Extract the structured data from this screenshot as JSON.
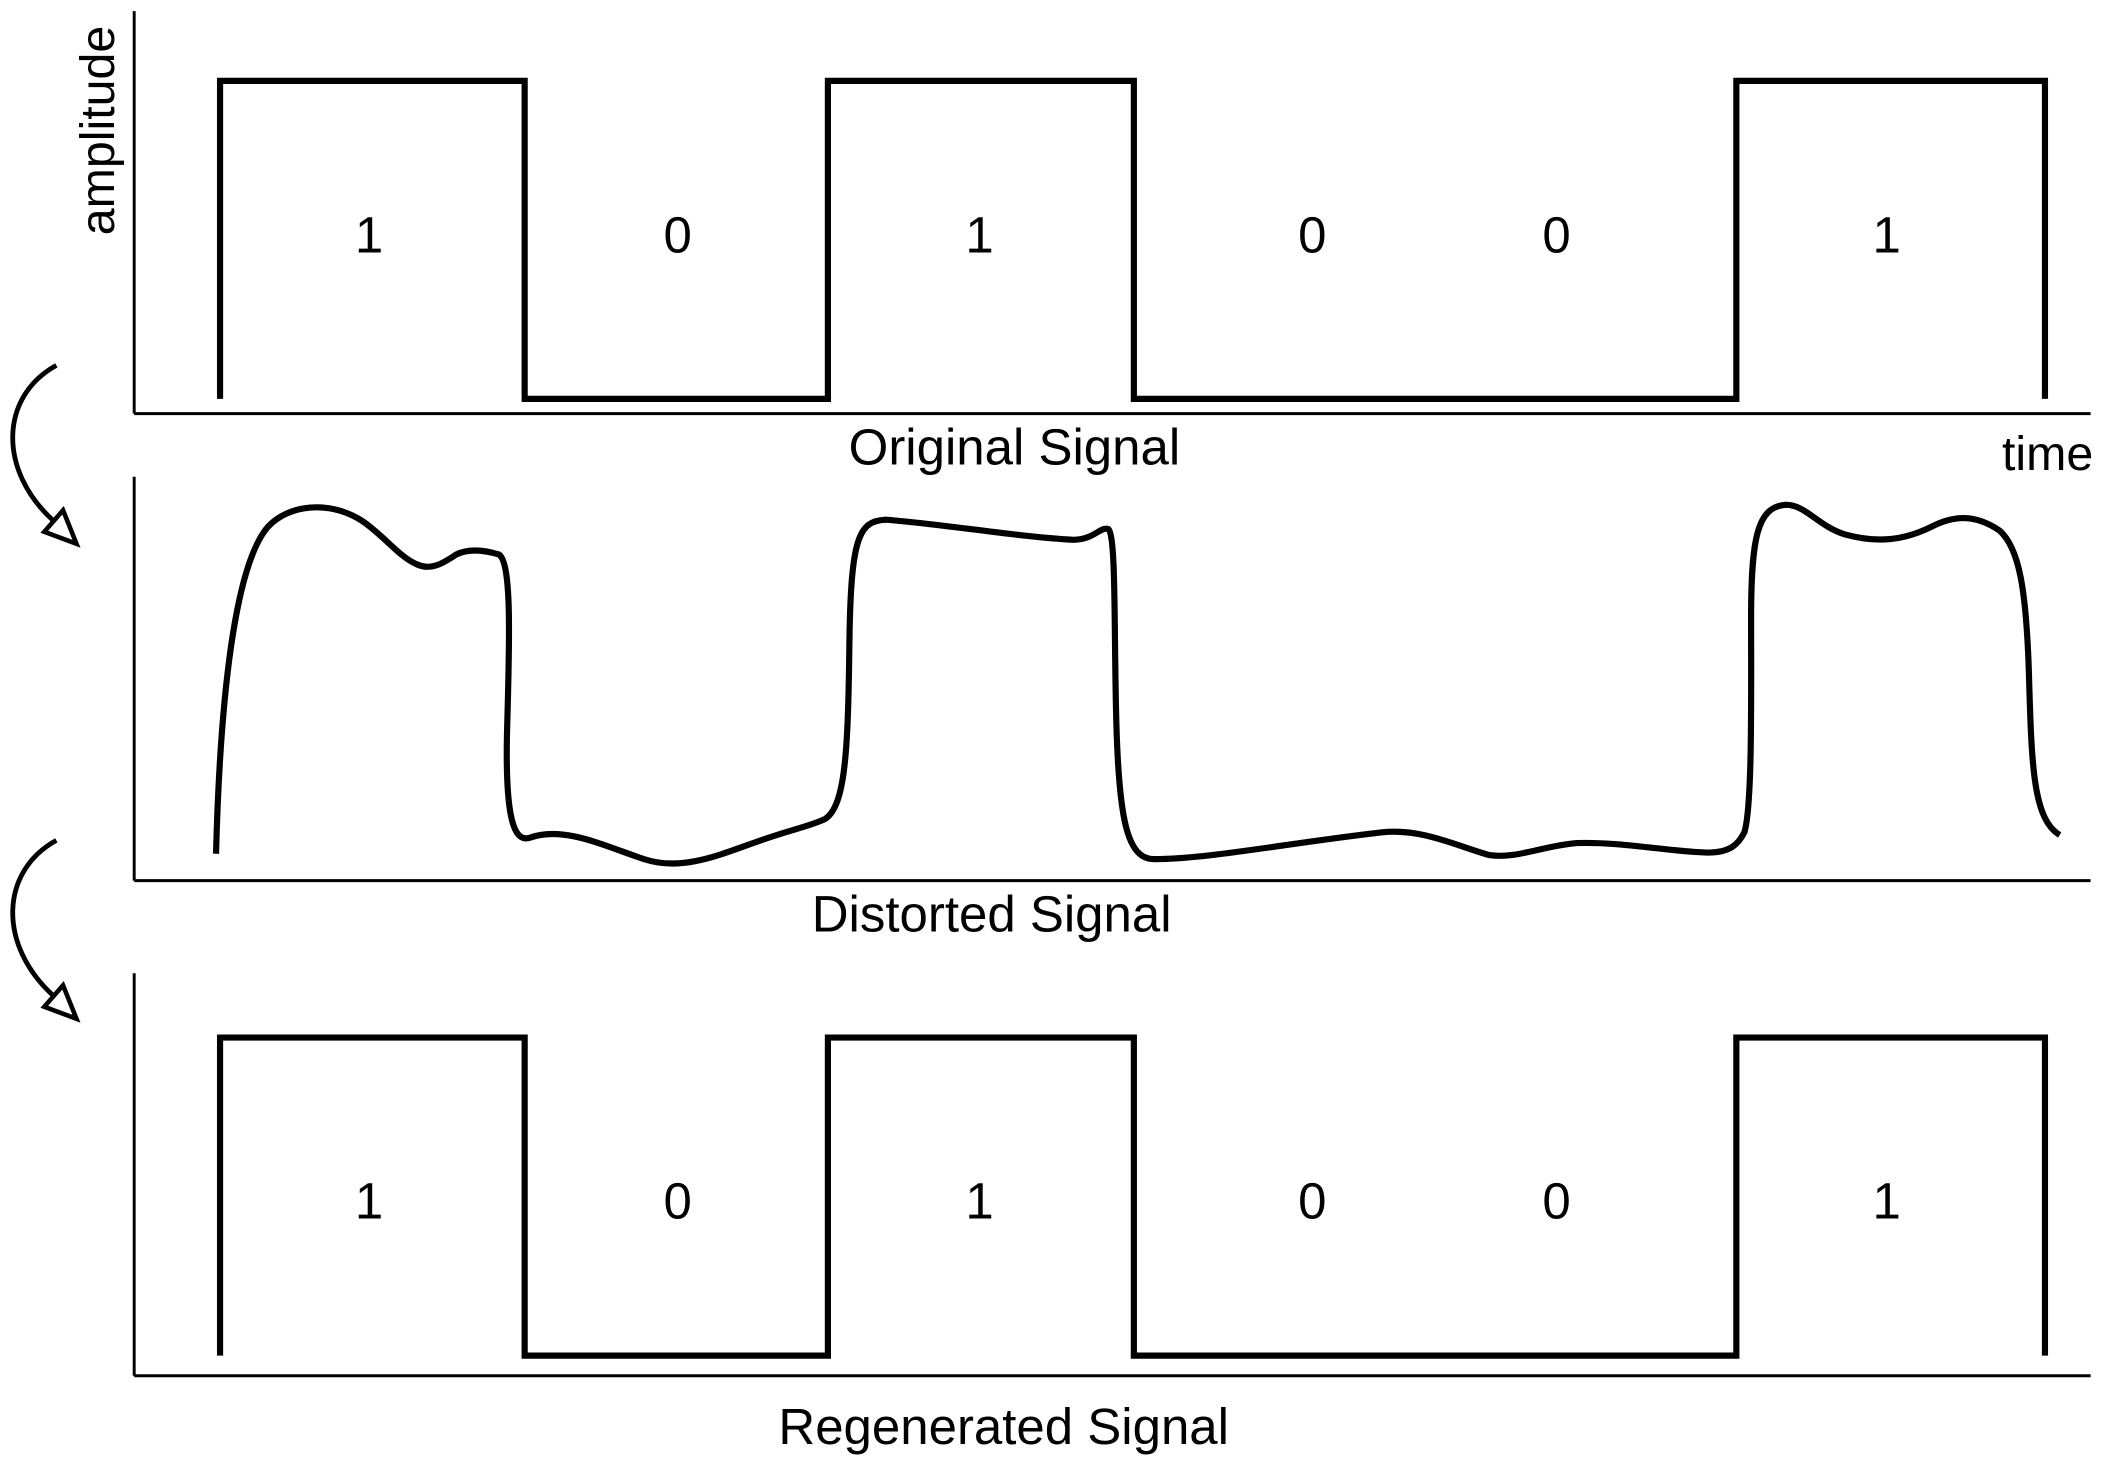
{
  "axes": {
    "y_label": "amplitude",
    "x_label": "time"
  },
  "panels": [
    {
      "label": "Original Signal",
      "bits": [
        "1",
        "0",
        "1",
        "0",
        "0",
        "1"
      ]
    },
    {
      "label": "Distorted Signal"
    },
    {
      "label": "Regenerated Signal",
      "bits": [
        "1",
        "0",
        "1",
        "0",
        "0",
        "1"
      ]
    }
  ],
  "colors": {
    "line": "#000000",
    "background": "#ffffff"
  }
}
